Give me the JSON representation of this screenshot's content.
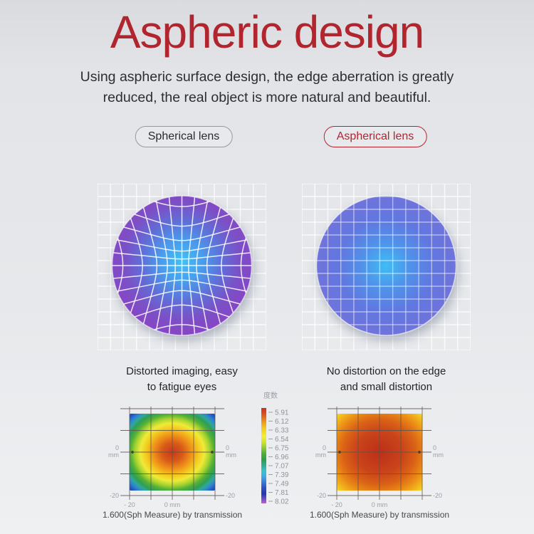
{
  "title": "Aspheric design",
  "subtitle": "Using aspheric surface design, the edge aberration is greatly\nreduced, the real object is more natural and beautiful.",
  "pills": {
    "spherical": "Spherical lens",
    "aspherical": "Aspherical lens"
  },
  "lens_captions": {
    "spherical": "Distorted imaging, easy\nto fatigue eyes",
    "aspherical": "No distortion on the edge\nand small distortion"
  },
  "heatmaps": {
    "left": {
      "axis": {
        "left_zero": "0",
        "left_unit": "mm",
        "left_neg": "-20",
        "right_zero": "0",
        "right_unit": "mm",
        "right_neg": "-20",
        "bottom_neg": "- 20",
        "bottom_zero": "0 mm"
      },
      "caption": "1.600(Sph Measure) by transmission"
    },
    "right": {
      "axis": {
        "left_zero": "0",
        "left_unit": "mm",
        "left_neg": "-20",
        "right_zero": "0",
        "right_unit": "mm",
        "right_neg": "-20",
        "bottom_neg": "- 20",
        "bottom_zero": "0 mm"
      },
      "caption": "1.600(Sph Measure) by transmission"
    }
  },
  "legend": {
    "title": "度数",
    "ticks": [
      "5.91",
      "6.12",
      "6.33",
      "6.54",
      "6.75",
      "6.96",
      "7.07",
      "7.39",
      "7.49",
      "7.81",
      "8.02"
    ]
  },
  "colors": {
    "accent_red": "#b1252e",
    "pill_gray_border": "#98999d",
    "lens_center_cyan": "#3fc1f4",
    "spherical_lens_edge": "#8744c8",
    "aspherical_lens_edge": "#7270da",
    "heatmap_hot": "#c63a1b",
    "heatmap_cold": "#2050c0"
  },
  "chart_data": [
    {
      "type": "heatmap",
      "title": "1.600(Sph Measure) by transmission",
      "lens": "spherical",
      "x_ticks": [
        "- 20",
        "0 mm"
      ],
      "side_ticks": [
        "0 mm",
        "-20"
      ],
      "legend_title": "度数",
      "legend_ticks": [
        5.91,
        6.12,
        6.33,
        6.54,
        6.75,
        6.96,
        7.07,
        7.39,
        7.49,
        7.81,
        8.02
      ],
      "pattern": "radial: high power (red ~5.91) at center falling to low (blue ~8.02) at corners"
    },
    {
      "type": "heatmap",
      "title": "1.600(Sph Measure) by transmission",
      "lens": "aspherical",
      "x_ticks": [
        "- 20",
        "0 mm"
      ],
      "side_ticks": [
        "0 mm",
        "-20"
      ],
      "legend_title": "度数",
      "legend_ticks": [
        5.91,
        6.12,
        6.33,
        6.54,
        6.75,
        6.96,
        7.07,
        7.39,
        7.49,
        7.81,
        8.02
      ],
      "pattern": "nearly uniform red/orange center with yellow edges and small green corners"
    }
  ]
}
